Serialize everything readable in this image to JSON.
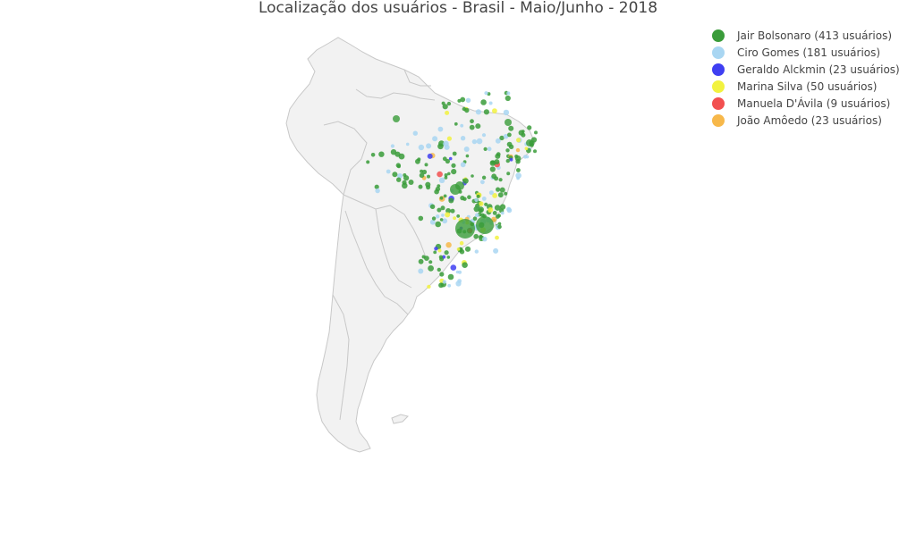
{
  "title": "Localização dos usuários - Brasil - Maio/Junho - 2018",
  "legend": [
    {
      "label": "Jair Bolsonaro (413 usuários)",
      "color": "#3a9c3a"
    },
    {
      "label": "Ciro Gomes (181 usuários)",
      "color": "#a9d6f2"
    },
    {
      "label": "Geraldo Alckmin (23 usuários)",
      "color": "#3f3ff2"
    },
    {
      "label": "Marina Silva (50 usuários)",
      "color": "#f2f23f"
    },
    {
      "label": "Manuela D'Ávila (9 usuários)",
      "color": "#f25050"
    },
    {
      "label": "João Amôedo (23 usuários)",
      "color": "#f7b84a"
    }
  ],
  "map_colors": {
    "land": "#f2f2f2",
    "border": "#c8c8c8"
  }
}
